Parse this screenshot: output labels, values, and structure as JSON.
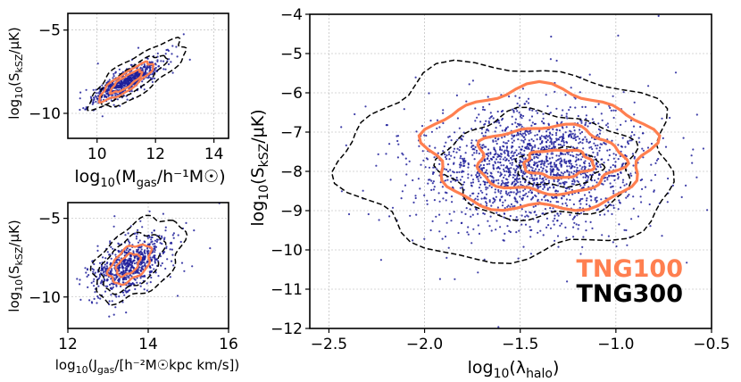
{
  "colors": {
    "tng100": "#ff7f50",
    "tng300": "#000000",
    "points": "#1f1f9a",
    "grid": "#b0b0b0"
  },
  "chart_data": [
    {
      "id": "top-left",
      "type": "scatter",
      "xlim": [
        9,
        14.5
      ],
      "ylim": [
        -11.5,
        -4
      ],
      "xticks": [
        10,
        12,
        14
      ],
      "xtick_labels": [
        "10",
        "12",
        "14"
      ],
      "yticks": [
        -10,
        -5
      ],
      "ytick_labels": [
        "−10",
        "−5"
      ],
      "xlabel_text": "log₁₀(M_gas/h⁻¹M☉)",
      "ylabel_text": "log₁₀(S_kSZ/μK)",
      "xlabel": {
        "pre": "log",
        "sub1": "10",
        "mid": "(M",
        "sub2": "gas",
        "post": "/h⁻¹M☉)"
      },
      "ylabel": {
        "pre": "log",
        "sub1": "10",
        "mid": "(S",
        "sub2": "kSZ",
        "post": "/μK)"
      },
      "grid": true,
      "scatter": {
        "n": 700,
        "x_mean": 11.0,
        "y_mean": -8.1,
        "sx": 0.55,
        "sy": 0.6,
        "rho": 0.85
      },
      "contours_tng300": [
        {
          "cx": 11.4,
          "cy": -7.7,
          "rx": 2.1,
          "ry": 0.95,
          "angle_deg": 42
        },
        {
          "cx": 11.2,
          "cy": -7.95,
          "rx": 1.5,
          "ry": 0.6,
          "angle_deg": 42
        }
      ],
      "contours_tng100": [
        {
          "cx": 11.0,
          "cy": -8.1,
          "rx": 1.2,
          "ry": 0.45,
          "angle_deg": 42
        },
        {
          "cx": 11.0,
          "cy": -8.1,
          "rx": 0.7,
          "ry": 0.28,
          "angle_deg": 42
        }
      ]
    },
    {
      "id": "bottom-left",
      "type": "scatter",
      "xlim": [
        12,
        16
      ],
      "ylim": [
        -12,
        -4
      ],
      "xticks": [
        12,
        14,
        16
      ],
      "xtick_labels": [
        "12",
        "14",
        "16"
      ],
      "yticks": [
        -10,
        -5
      ],
      "ytick_labels": [
        "−10",
        "−5"
      ],
      "xlabel_text": "log₁₀(J_gas/[h⁻²M☉kpc km/s])",
      "ylabel_text": "log₁₀(S_kSZ/μK)",
      "xlabel": {
        "pre": "log",
        "sub1": "10",
        "mid": "(J",
        "sub2": "gas",
        "post": "/[h⁻²M☉kpc km/s])"
      },
      "ylabel": {
        "pre": "log",
        "sub1": "10",
        "mid": "(S",
        "sub2": "kSZ",
        "post": "/μK)"
      },
      "grid": true,
      "scatter": {
        "n": 750,
        "x_mean": 13.55,
        "y_mean": -7.9,
        "sx": 0.45,
        "sy": 0.9,
        "rho": 0.55
      },
      "contours_tng300": [
        {
          "cx": 13.75,
          "cy": -7.6,
          "rx": 1.5,
          "ry": 1.75,
          "angle_deg": 55
        },
        {
          "cx": 13.6,
          "cy": -7.8,
          "rx": 1.05,
          "ry": 1.2,
          "angle_deg": 55
        }
      ],
      "contours_tng100": [
        {
          "cx": 13.55,
          "cy": -7.9,
          "rx": 0.7,
          "ry": 0.8,
          "angle_deg": 55
        },
        {
          "cx": 13.5,
          "cy": -7.95,
          "rx": 0.4,
          "ry": 0.45,
          "angle_deg": 55
        }
      ]
    },
    {
      "id": "main",
      "type": "scatter",
      "xlim": [
        -2.6,
        -0.5
      ],
      "ylim": [
        -12,
        -4
      ],
      "xticks": [
        -2.5,
        -2.0,
        -1.5,
        -1.0,
        -0.5
      ],
      "xtick_labels": [
        "−2.5",
        "−2.0",
        "−1.5",
        "−1.0",
        "−0.5"
      ],
      "yticks": [
        -12,
        -11,
        -10,
        -9,
        -8,
        -7,
        -6,
        -5,
        -4
      ],
      "ytick_labels": [
        "−12",
        "−11",
        "−10",
        "−9",
        "−8",
        "−7",
        "−6",
        "−5",
        "−4"
      ],
      "xlabel_text": "log₁₀(λ_halo)",
      "ylabel_text": "log₁₀(S_kSZ/μK)",
      "xlabel": {
        "pre": "log",
        "sub1": "10",
        "mid": "(λ",
        "sub2": "halo",
        "post": ")"
      },
      "ylabel": {
        "pre": "log",
        "sub1": "10",
        "mid": "(S",
        "sub2": "kSZ",
        "post": "/μK)"
      },
      "grid": true,
      "scatter": {
        "n": 1900,
        "x_mean": -1.42,
        "y_mean": -7.9,
        "sx": 0.27,
        "sy": 0.72,
        "rho": 0.05
      },
      "contours_tng300": [
        {
          "cx": -1.55,
          "cy": -7.75,
          "rx": 0.86,
          "ry": 2.45,
          "angle_deg": 0
        },
        {
          "cx": -1.4,
          "cy": -7.85,
          "rx": 0.5,
          "ry": 1.35,
          "angle_deg": 0
        },
        {
          "cx": -1.3,
          "cy": -7.9,
          "rx": 0.22,
          "ry": 0.48,
          "angle_deg": 0
        }
      ],
      "contours_tng100": [
        {
          "cx": -1.4,
          "cy": -7.45,
          "rx": 0.58,
          "ry": 1.55,
          "angle_deg": 0
        },
        {
          "cx": -1.35,
          "cy": -7.7,
          "rx": 0.38,
          "ry": 0.85,
          "angle_deg": 0
        },
        {
          "cx": -1.3,
          "cy": -7.8,
          "rx": 0.18,
          "ry": 0.35,
          "angle_deg": 0
        }
      ],
      "legend": {
        "placement": "bottom-right",
        "entries": [
          "TNG100",
          "TNG300"
        ]
      }
    }
  ]
}
